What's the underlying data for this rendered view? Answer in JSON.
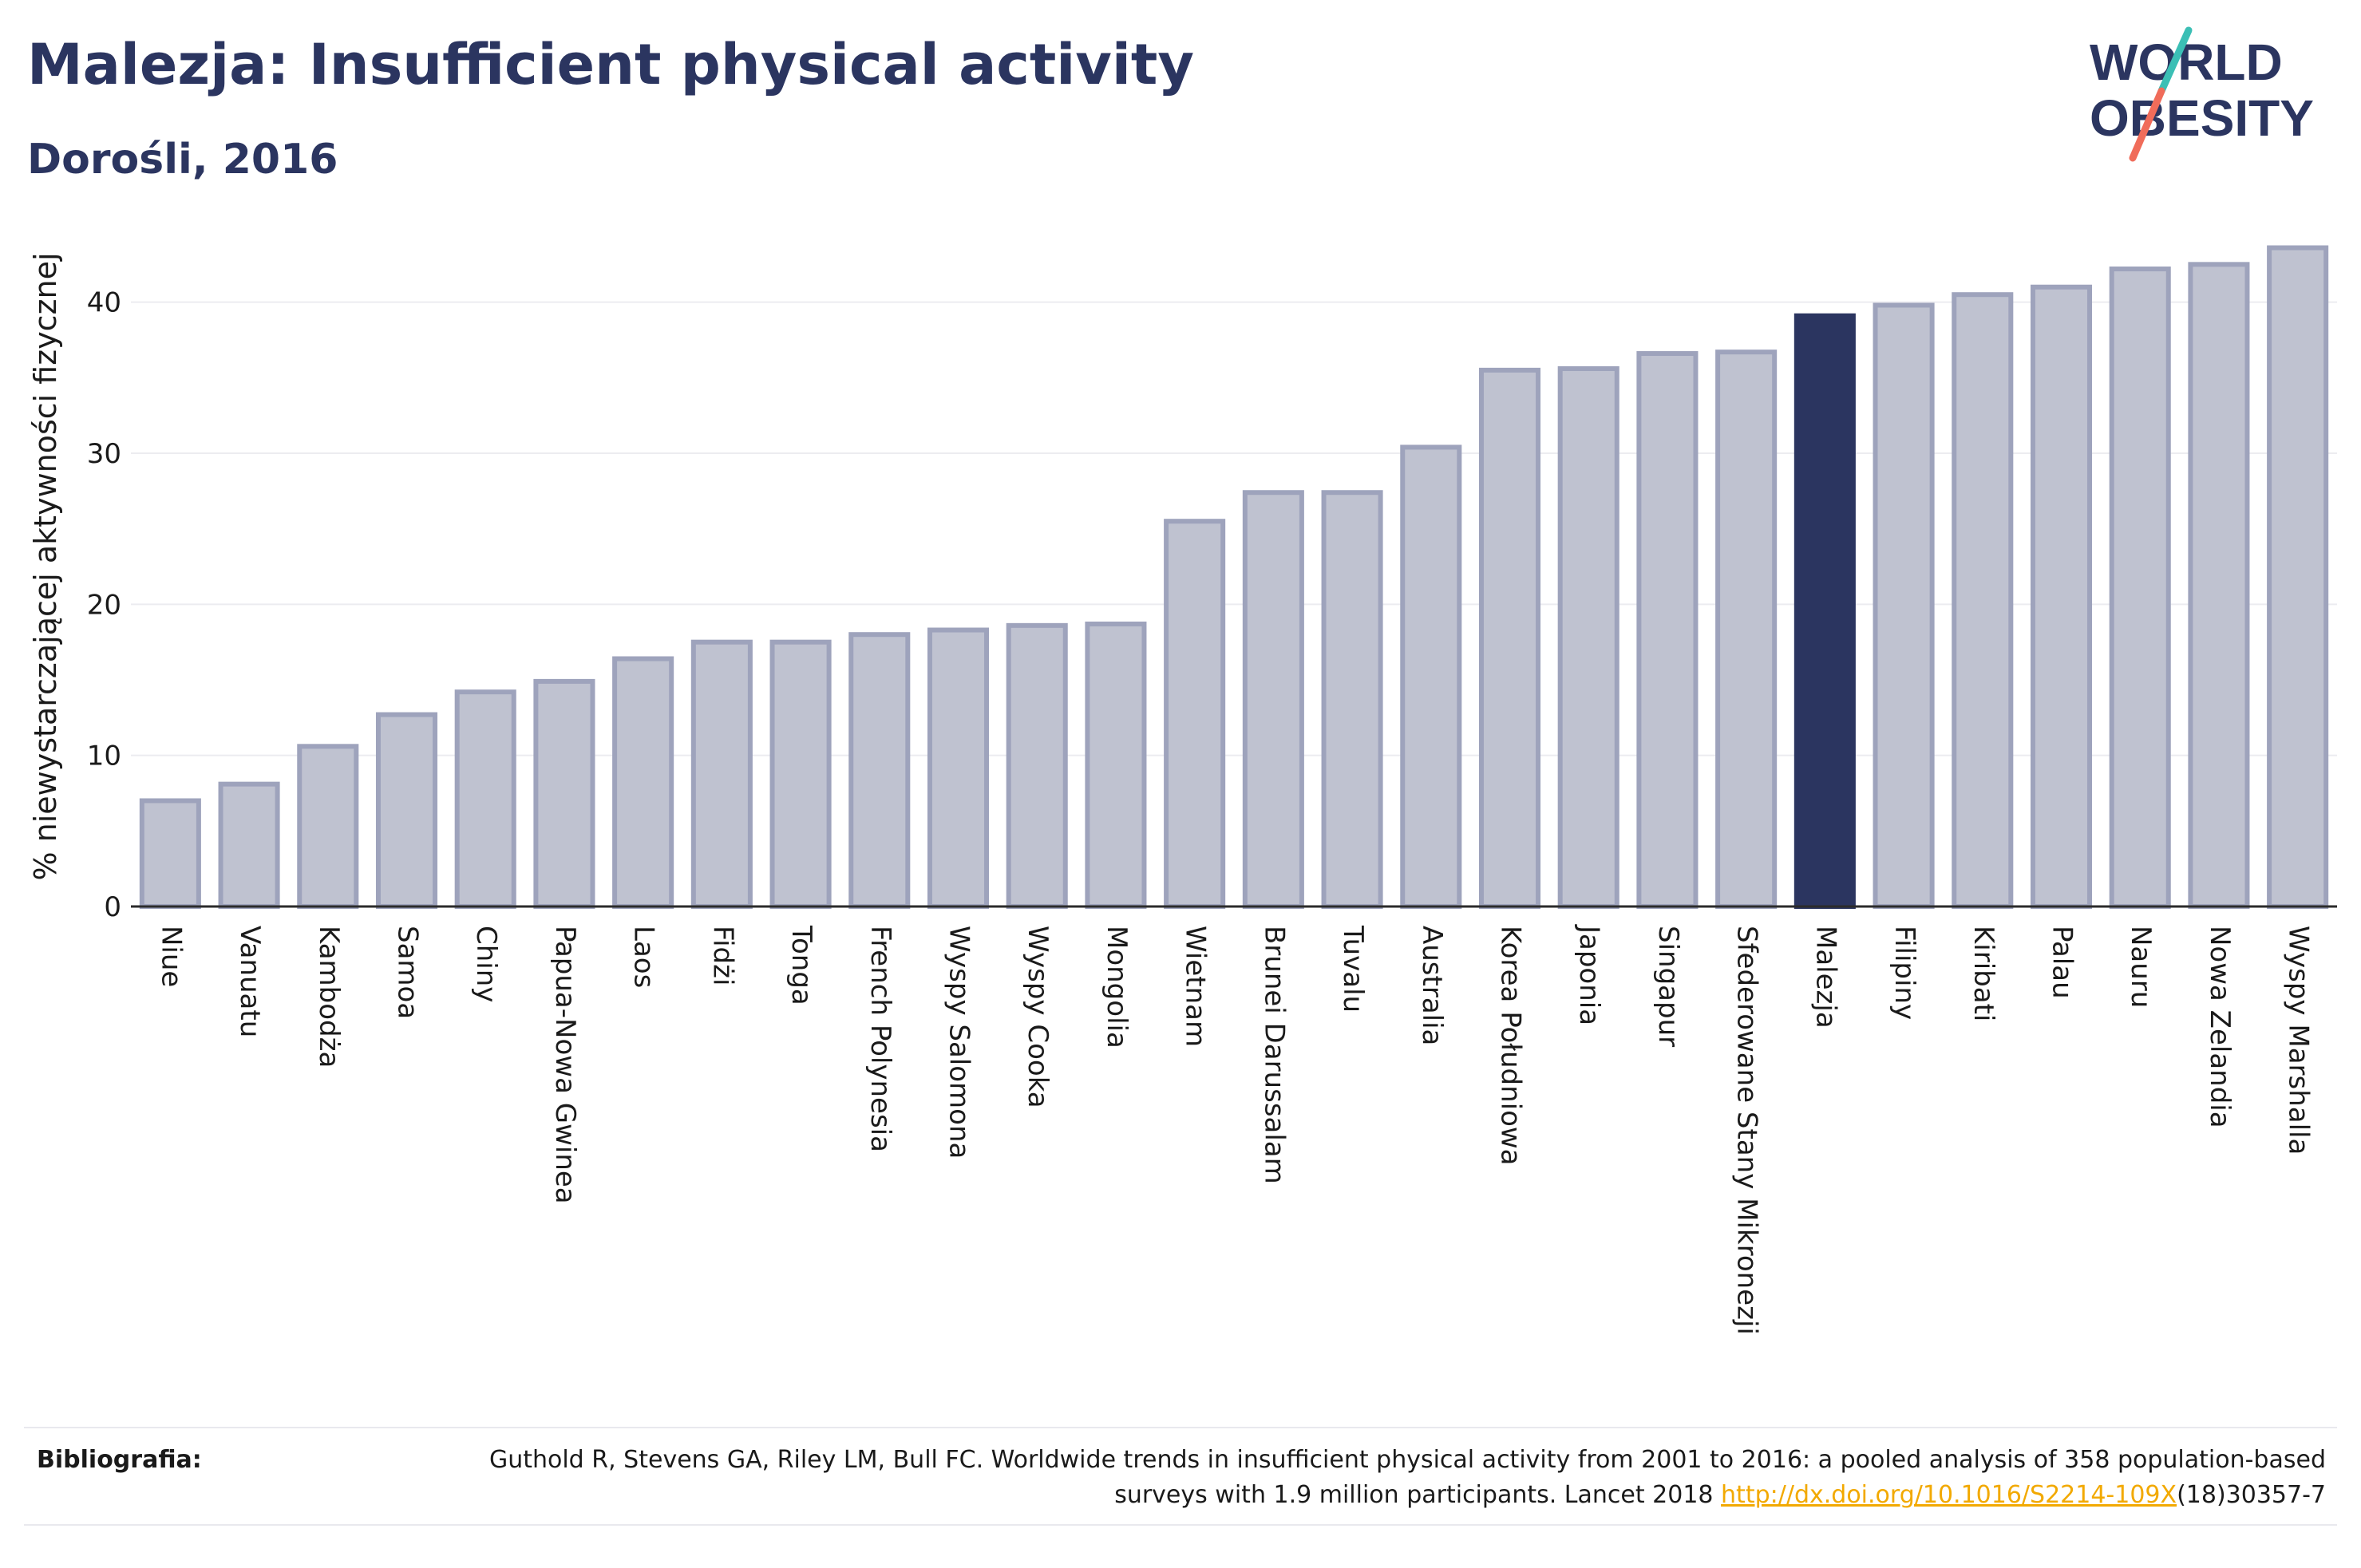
{
  "header": {
    "title": "Malezja: Insufficient physical activity",
    "subtitle": "Dorośli, 2016"
  },
  "logo": {
    "line1": "WORLD",
    "line2": "OBESITY"
  },
  "colors": {
    "highlight": "#2b3560",
    "bar_fill": "#bfc2d0",
    "bar_stroke": "#9ea3bc",
    "grid": "#ececf0",
    "logo_text": "#2b3560",
    "logo_teal": "#3bbfb5",
    "logo_coral": "#f06c5a",
    "link": "#f2a900"
  },
  "chart_data": {
    "type": "bar",
    "title": "",
    "xlabel": "",
    "ylabel": "% niewystarczającej aktywności fizycznej",
    "ylim": [
      0,
      45
    ],
    "yticks": [
      0,
      10,
      20,
      30,
      40
    ],
    "grid": true,
    "highlight_category": "Malezja",
    "categories": [
      "Niue",
      "Vanuatu",
      "Kambodża",
      "Samoa",
      "Chiny",
      "Papua-Nowa Gwinea",
      "Laos",
      "Fidżi",
      "Tonga",
      "French Polynesia",
      "Wyspy Salomona",
      "Wyspy Cooka",
      "Mongolia",
      "Wietnam",
      "Brunei Darussalam",
      "Tuvalu",
      "Australia",
      "Korea Południowa",
      "Japonia",
      "Singapur",
      "Sfederowane Stany Mikronezji",
      "Malezja",
      "Filipiny",
      "Kiribati",
      "Palau",
      "Nauru",
      "Nowa Zelandia",
      "Wyspy Marshalla"
    ],
    "values": [
      7.0,
      8.1,
      10.6,
      12.7,
      14.2,
      14.9,
      16.4,
      17.5,
      17.5,
      18.0,
      18.3,
      18.6,
      18.7,
      25.5,
      27.4,
      27.4,
      30.4,
      35.5,
      35.6,
      36.6,
      36.7,
      39.1,
      39.8,
      40.5,
      41.0,
      42.2,
      42.5,
      43.6
    ]
  },
  "bibliography": {
    "label": "Bibliografia:",
    "text_before": "Guthold R, Stevens GA, Riley LM, Bull FC. Worldwide trends in insufficient physical activity from 2001 to 2016: a pooled analysis of 358 population-based surveys with 1.9 million participants. Lancet 2018 ",
    "link": "http://dx.doi.org/10.1016/S2214-109X",
    "text_after": "(18)30357-7"
  }
}
